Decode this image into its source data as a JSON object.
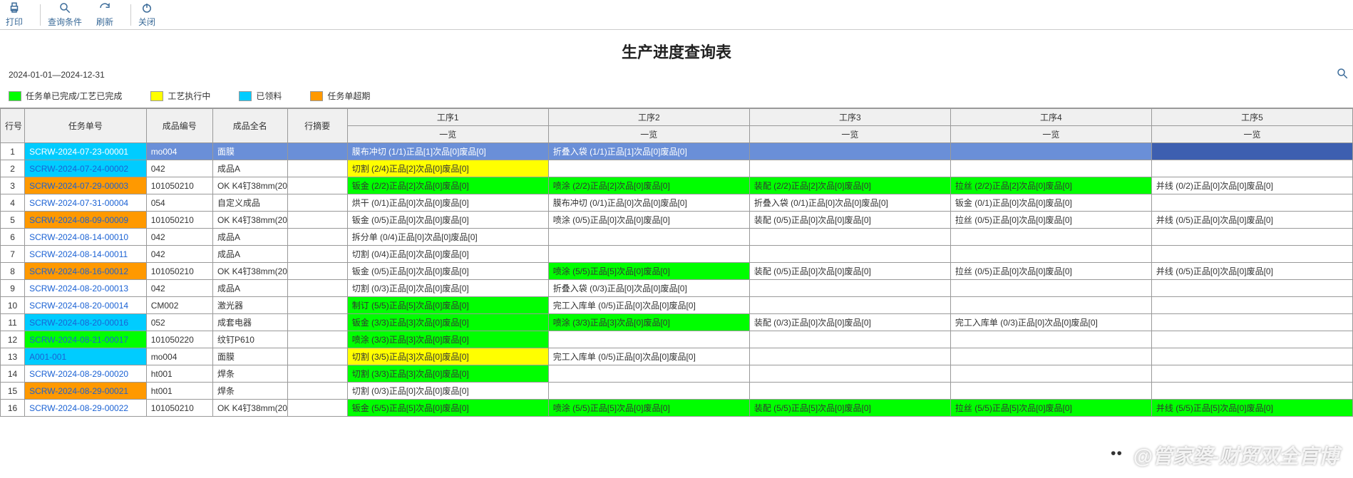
{
  "toolbar": {
    "print": "打印",
    "query": "查询条件",
    "refresh": "刷新",
    "close": "关闭"
  },
  "title": "生产进度查询表",
  "date_range": "2024-01-01—2024-12-31",
  "legend": [
    {
      "color": "#00ff00",
      "label": "任务单已完成/工艺已完成"
    },
    {
      "color": "#ffff00",
      "label": "工艺执行中"
    },
    {
      "color": "#00ccff",
      "label": "已领料"
    },
    {
      "color": "#ff9900",
      "label": "任务单超期"
    }
  ],
  "colors": {
    "green": "#00ff00",
    "yellow": "#ffff00",
    "cyan": "#00ccff",
    "orange": "#ff9900",
    "selected_row": "#6a8fd8",
    "selected_cell": "#3d5fb0",
    "header": "#f0f0f0"
  },
  "columns": {
    "row": "行号",
    "task": "任务单号",
    "prodcode": "成品编号",
    "prodname": "成品全名",
    "summary": "行摘要",
    "steps": [
      "工序1",
      "工序2",
      "工序3",
      "工序4",
      "工序5"
    ],
    "sub": "一览"
  },
  "rows": [
    {
      "n": 1,
      "task": "SCRW-2024-07-23-00001",
      "task_bg": "cyan",
      "row_bg": "selected_row",
      "code": "mo004",
      "name": "面膜",
      "summary": "",
      "s": [
        {
          "t": "膜布冲切 (1/1)正品[1]次品[0]废品[0]",
          "bg": "selected_row"
        },
        {
          "t": "折叠入袋 (1/1)正品[1]次品[0]废品[0]",
          "bg": "selected_row"
        },
        {
          "t": "",
          "bg": "selected_row"
        },
        {
          "t": "",
          "bg": "selected_row"
        },
        {
          "t": "",
          "bg": "selected_cell"
        }
      ]
    },
    {
      "n": 2,
      "task": "SCRW-2024-07-24-00002",
      "task_bg": "cyan",
      "code": "042",
      "name": "成品A",
      "summary": "",
      "s": [
        {
          "t": "切割 (2/4)正品[2]次品[0]废品[0]",
          "bg": "yellow"
        },
        {
          "t": ""
        },
        {
          "t": ""
        },
        {
          "t": ""
        },
        {
          "t": ""
        }
      ]
    },
    {
      "n": 3,
      "task": "SCRW-2024-07-29-00003",
      "task_bg": "orange",
      "code": "101050210",
      "name": "OK K4钉38mm(2000)",
      "summary": "",
      "s": [
        {
          "t": "钣金 (2/2)正品[2]次品[0]废品[0]",
          "bg": "green"
        },
        {
          "t": "喷涂 (2/2)正品[2]次品[0]废品[0]",
          "bg": "green"
        },
        {
          "t": "装配 (2/2)正品[2]次品[0]废品[0]",
          "bg": "green"
        },
        {
          "t": "拉丝 (2/2)正品[2]次品[0]废品[0]",
          "bg": "green"
        },
        {
          "t": "并线 (0/2)正品[0]次品[0]废品[0]"
        }
      ]
    },
    {
      "n": 4,
      "task": "SCRW-2024-07-31-00004",
      "task_bg": "",
      "code": "054",
      "name": "自定义成品",
      "summary": "",
      "s": [
        {
          "t": "烘干 (0/1)正品[0]次品[0]废品[0]"
        },
        {
          "t": "膜布冲切 (0/1)正品[0]次品[0]废品[0]"
        },
        {
          "t": "折叠入袋 (0/1)正品[0]次品[0]废品[0]"
        },
        {
          "t": "钣金 (0/1)正品[0]次品[0]废品[0]"
        },
        {
          "t": ""
        }
      ]
    },
    {
      "n": 5,
      "task": "SCRW-2024-08-09-00009",
      "task_bg": "orange",
      "code": "101050210",
      "name": "OK K4钉38mm(2000)",
      "summary": "",
      "s": [
        {
          "t": "钣金 (0/5)正品[0]次品[0]废品[0]"
        },
        {
          "t": "喷涂 (0/5)正品[0]次品[0]废品[0]"
        },
        {
          "t": "装配 (0/5)正品[0]次品[0]废品[0]"
        },
        {
          "t": "拉丝 (0/5)正品[0]次品[0]废品[0]"
        },
        {
          "t": "并线 (0/5)正品[0]次品[0]废品[0]"
        }
      ]
    },
    {
      "n": 6,
      "task": "SCRW-2024-08-14-00010",
      "task_bg": "",
      "code": "042",
      "name": "成品A",
      "summary": "",
      "s": [
        {
          "t": "拆分单 (0/4)正品[0]次品[0]废品[0]"
        },
        {
          "t": ""
        },
        {
          "t": ""
        },
        {
          "t": ""
        },
        {
          "t": ""
        }
      ]
    },
    {
      "n": 7,
      "task": "SCRW-2024-08-14-00011",
      "task_bg": "",
      "code": "042",
      "name": "成品A",
      "summary": "",
      "s": [
        {
          "t": "切割 (0/4)正品[0]次品[0]废品[0]"
        },
        {
          "t": ""
        },
        {
          "t": ""
        },
        {
          "t": ""
        },
        {
          "t": ""
        }
      ]
    },
    {
      "n": 8,
      "task": "SCRW-2024-08-16-00012",
      "task_bg": "orange",
      "code": "101050210",
      "name": "OK K4钉38mm(2000)",
      "summary": "",
      "s": [
        {
          "t": "钣金 (0/5)正品[0]次品[0]废品[0]"
        },
        {
          "t": "喷涂 (5/5)正品[5]次品[0]废品[0]",
          "bg": "green"
        },
        {
          "t": "装配 (0/5)正品[0]次品[0]废品[0]"
        },
        {
          "t": "拉丝 (0/5)正品[0]次品[0]废品[0]"
        },
        {
          "t": "并线 (0/5)正品[0]次品[0]废品[0]"
        }
      ]
    },
    {
      "n": 9,
      "task": "SCRW-2024-08-20-00013",
      "task_bg": "",
      "code": "042",
      "name": "成品A",
      "summary": "",
      "s": [
        {
          "t": "切割 (0/3)正品[0]次品[0]废品[0]"
        },
        {
          "t": "折叠入袋 (0/3)正品[0]次品[0]废品[0]"
        },
        {
          "t": ""
        },
        {
          "t": ""
        },
        {
          "t": ""
        }
      ]
    },
    {
      "n": 10,
      "task": "SCRW-2024-08-20-00014",
      "task_bg": "",
      "code": "CM002",
      "name": "激光器",
      "summary": "",
      "s": [
        {
          "t": "制订 (5/5)正品[5]次品[0]废品[0]",
          "bg": "green"
        },
        {
          "t": "完工入库单 (0/5)正品[0]次品[0]废品[0]"
        },
        {
          "t": ""
        },
        {
          "t": ""
        },
        {
          "t": ""
        }
      ]
    },
    {
      "n": 11,
      "task": "SCRW-2024-08-20-00016",
      "task_bg": "cyan",
      "code": "052",
      "name": "成套电器",
      "summary": "",
      "s": [
        {
          "t": "钣金 (3/3)正品[3]次品[0]废品[0]",
          "bg": "green"
        },
        {
          "t": "喷涂 (3/3)正品[3]次品[0]废品[0]",
          "bg": "green"
        },
        {
          "t": "装配 (0/3)正品[0]次品[0]废品[0]"
        },
        {
          "t": "完工入库单 (0/3)正品[0]次品[0]废品[0]"
        },
        {
          "t": ""
        }
      ]
    },
    {
      "n": 12,
      "task": "SCRW-2024-08-21-00017",
      "task_bg": "green",
      "code": "101050220",
      "name": "纹钉P610",
      "summary": "",
      "s": [
        {
          "t": "喷涂 (3/3)正品[3]次品[0]废品[0]",
          "bg": "green"
        },
        {
          "t": ""
        },
        {
          "t": ""
        },
        {
          "t": ""
        },
        {
          "t": ""
        }
      ]
    },
    {
      "n": 13,
      "task": "A001-001",
      "task_bg": "cyan",
      "code": "mo004",
      "name": "面膜",
      "summary": "",
      "s": [
        {
          "t": "切割 (3/5)正品[3]次品[0]废品[0]",
          "bg": "yellow"
        },
        {
          "t": "完工入库单 (0/5)正品[0]次品[0]废品[0]"
        },
        {
          "t": ""
        },
        {
          "t": ""
        },
        {
          "t": ""
        }
      ]
    },
    {
      "n": 14,
      "task": "SCRW-2024-08-29-00020",
      "task_bg": "",
      "code": "ht001",
      "name": "焊条",
      "summary": "",
      "s": [
        {
          "t": "切割 (3/3)正品[3]次品[0]废品[0]",
          "bg": "green"
        },
        {
          "t": ""
        },
        {
          "t": ""
        },
        {
          "t": ""
        },
        {
          "t": ""
        }
      ]
    },
    {
      "n": 15,
      "task": "SCRW-2024-08-29-00021",
      "task_bg": "orange",
      "code": "ht001",
      "name": "焊条",
      "summary": "",
      "s": [
        {
          "t": "切割 (0/3)正品[0]次品[0]废品[0]"
        },
        {
          "t": ""
        },
        {
          "t": ""
        },
        {
          "t": ""
        },
        {
          "t": ""
        }
      ]
    },
    {
      "n": 16,
      "task": "SCRW-2024-08-29-00022",
      "task_bg": "",
      "code": "101050210",
      "name": "OK K4钉38mm(2000)",
      "summary": "",
      "s": [
        {
          "t": "钣金 (5/5)正品[5]次品[0]废品[0]",
          "bg": "green"
        },
        {
          "t": "喷涂 (5/5)正品[5]次品[0]废品[0]",
          "bg": "green"
        },
        {
          "t": "装配 (5/5)正品[5]次品[0]废品[0]",
          "bg": "green"
        },
        {
          "t": "拉丝 (5/5)正品[5]次品[0]废品[0]",
          "bg": "green"
        },
        {
          "t": "并线 (5/5)正品[5]次品[0]废品[0]",
          "bg": "green"
        }
      ]
    }
  ],
  "watermark": "@管家婆-财贸双全官博"
}
